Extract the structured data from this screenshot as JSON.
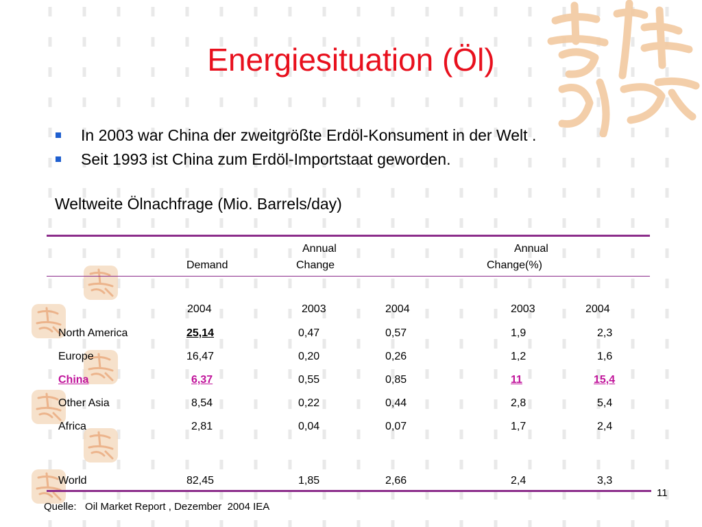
{
  "slide": {
    "title": "Energiesituation (Öl)",
    "bullets": [
      "In 2003 war China der zweitgrößte Erdöl-Konsument in der Welt .",
      "Seit 1993 ist China zum Erdöl-Importstaat geworden."
    ],
    "subtitle": "Weltweite Ölnachfrage (Mio. Barrels/day)",
    "page_number": "11",
    "source": "Quelle:   Oil Market Report , Dezember  2004 IEA"
  },
  "table": {
    "header": {
      "demand": "Demand",
      "annual_change_line1": "Annual",
      "annual_change_line2": "Change",
      "annual_change_pct_line1": "Annual",
      "annual_change_pct_line2": "Change(%)"
    },
    "years": {
      "demand": "2004",
      "change_2003": "2003",
      "change_2004": "2004",
      "pct_2003": "2003",
      "pct_2004": "2004"
    },
    "rows": [
      {
        "region": "North America",
        "demand": "25,14",
        "change_2003": "0,47",
        "change_2004": "0,57",
        "pct_2003": "1,9",
        "pct_2004": "2,3"
      },
      {
        "region": "Europe",
        "demand": "16,47",
        "change_2003": "0,20",
        "change_2004": "0,26",
        "pct_2003": "1,2",
        "pct_2004": "1,6"
      },
      {
        "region": "China",
        "demand": "6,37",
        "change_2003": "0,55",
        "change_2004": "0,85",
        "pct_2003": "11",
        "pct_2004": "15,4"
      },
      {
        "region": "Other Asia",
        "demand": "8,54",
        "change_2003": "0,22",
        "change_2004": "0,44",
        "pct_2003": "2,8",
        "pct_2004": "5,4"
      },
      {
        "region": "Africa",
        "demand": "2,81",
        "change_2003": "0,04",
        "change_2004": "0,07",
        "pct_2003": "1,7",
        "pct_2004": "2,4"
      }
    ],
    "total": {
      "region": "World",
      "demand": "82,45",
      "change_2003": "1,85",
      "change_2004": "2,66",
      "pct_2003": "2,4",
      "pct_2004": "3,3"
    }
  },
  "colors": {
    "title": "#e8101d",
    "bullet": "#1f5fcf",
    "rule": "#8b2c8a",
    "highlight": "#c0129a",
    "decoration": "#f2c9a0"
  },
  "icons": {
    "bullet": "square-bullet-icon",
    "decoration": "chinese-calligraphy-seal-icon"
  }
}
